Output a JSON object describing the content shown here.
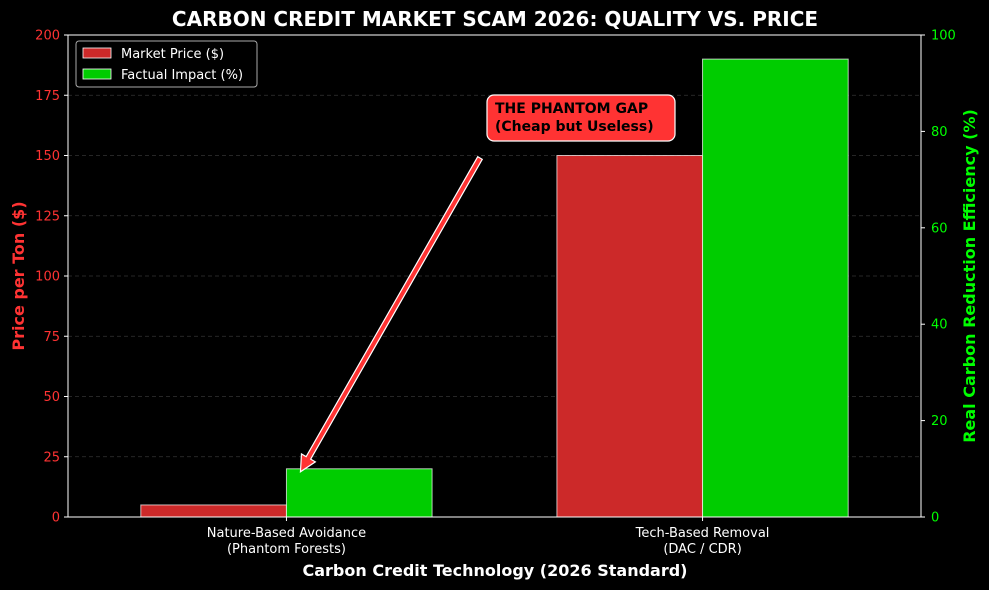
{
  "chart_data": {
    "type": "bar",
    "title": "CARBON CREDIT MARKET SCAM 2026: QUALITY VS. PRICE",
    "xlabel": "Carbon Credit Technology (2026 Standard)",
    "ylabel_left": "Price per Ton ($)",
    "ylabel_right": "Real Carbon Reduction Efficiency (%)",
    "categories": [
      [
        "Nature-Based Avoidance",
        "(Phantom Forests)"
      ],
      [
        "Tech-Based Removal",
        "(DAC / CDR)"
      ]
    ],
    "ylim_left": [
      0,
      200
    ],
    "yticks_left": [
      0,
      25,
      50,
      75,
      100,
      125,
      150,
      175,
      200
    ],
    "ylim_right": [
      0,
      100
    ],
    "yticks_right": [
      0,
      20,
      40,
      60,
      80,
      100
    ],
    "grid": true,
    "legend_position": "top-left",
    "series": [
      {
        "name": "Market Price ($)",
        "axis": "left",
        "values": [
          5,
          150
        ],
        "color": "#cc2929"
      },
      {
        "name": "Factual Impact (%)",
        "axis": "right",
        "values": [
          10,
          95
        ],
        "color": "#00cc00"
      }
    ],
    "annotation": {
      "lines": [
        "THE PHANTOM GAP",
        "(Cheap but Useless)"
      ],
      "target_category": 0,
      "target_series": 1,
      "bg_color": "#ff3333"
    },
    "colors": {
      "background": "#000000",
      "left_axis": "#ff3333",
      "right_axis": "#00ff00",
      "text": "#ffffff"
    }
  }
}
